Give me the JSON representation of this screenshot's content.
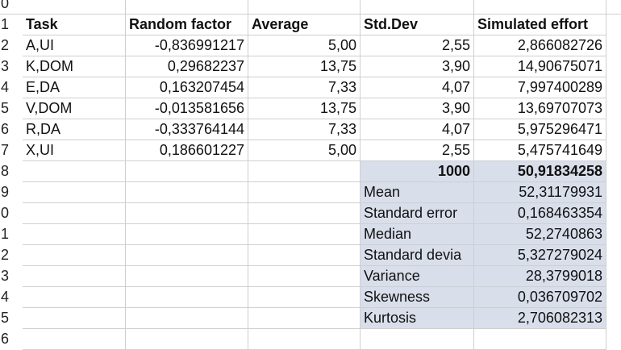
{
  "row_numbers": [
    "0",
    "1",
    "2",
    "3",
    "4",
    "5",
    "6",
    "7",
    "8",
    "9",
    "0",
    "1",
    "2",
    "3",
    "4",
    "5",
    "6"
  ],
  "headers": [
    "Task",
    "Random factor",
    "Average",
    "",
    "Std.Dev",
    "Simulated effort"
  ],
  "tasks": [
    {
      "task": "A,UI",
      "random": "-0,836991217",
      "average": "5,00",
      "stddev": "2,55",
      "effort": "2,866082726"
    },
    {
      "task": "K,DOM",
      "random": "0,29682237",
      "average": "13,75",
      "stddev": "3,90",
      "effort": "14,90675071"
    },
    {
      "task": "E,DA",
      "random": "0,163207454",
      "average": "7,33",
      "stddev": "4,07",
      "effort": "7,997400289"
    },
    {
      "task": "V,DOM",
      "random": "-0,013581656",
      "average": "13,75",
      "stddev": "3,90",
      "effort": "13,69707073"
    },
    {
      "task": "R,DA",
      "random": "-0,333764144",
      "average": "7,33",
      "stddev": "4,07",
      "effort": "5,975296471"
    },
    {
      "task": "X,UI",
      "random": "0,186601227",
      "average": "5,00",
      "stddev": "2,55",
      "effort": "5,475741649"
    }
  ],
  "summary": {
    "count": "1000",
    "effort": "50,91834258"
  },
  "stats": [
    {
      "label": "Mean",
      "value": "52,31179931"
    },
    {
      "label": "Standard error",
      "value": "0,168463354"
    },
    {
      "label": "Median",
      "value": "52,2740863"
    },
    {
      "label": "Standard devia",
      "value": "5,327279024"
    },
    {
      "label": "Variance",
      "value": "28,3799018"
    },
    {
      "label": "Skewness",
      "value": "0,036709702"
    },
    {
      "label": "Kurtosis",
      "value": "2,706082313"
    }
  ],
  "colors": {
    "highlight": "#d9deeb",
    "gridline": "#cfcfcf"
  }
}
